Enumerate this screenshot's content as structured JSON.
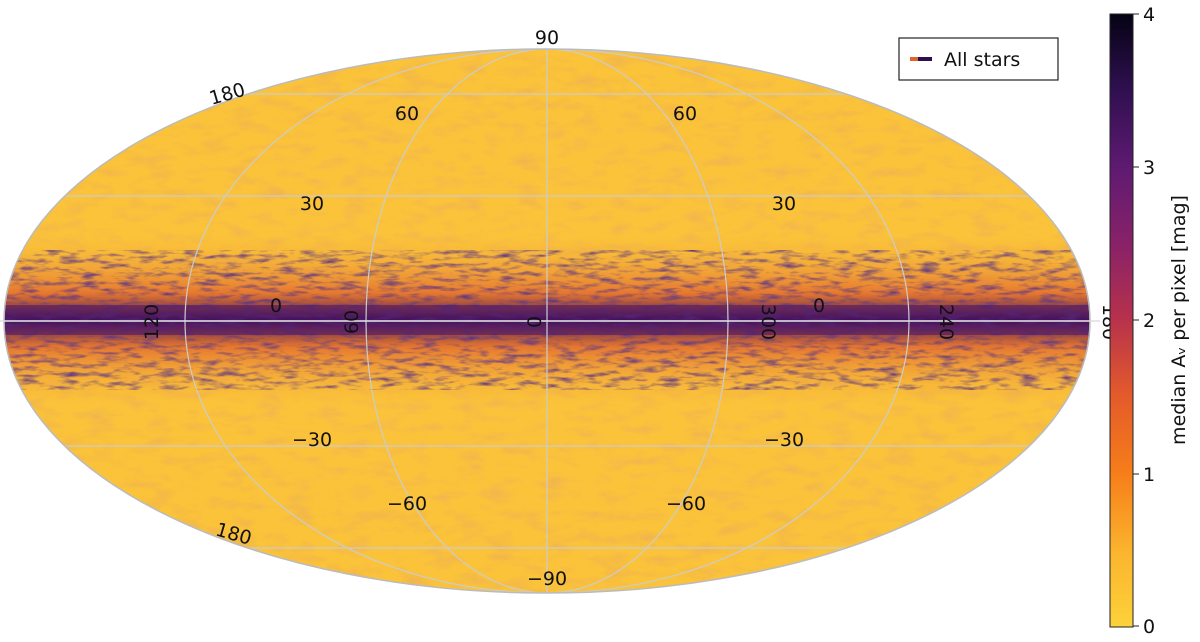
{
  "map": {
    "projection": "mollweide",
    "meridian_labels_top": [
      "180",
      "60",
      "60"
    ],
    "parallel_labels": [
      "30",
      "30",
      "0",
      "0",
      "−30",
      "−30",
      "−60",
      "−60"
    ],
    "equator_labels": [
      "120",
      "60",
      "0",
      "300",
      "240",
      "180"
    ],
    "pole_north": "90",
    "pole_south": "−90",
    "edge_bottom_left": "180"
  },
  "legend": {
    "label": "All stars"
  },
  "colorbar": {
    "label": "median Aᵥ per pixel  [mag]",
    "ticks": [
      "0",
      "1",
      "2",
      "3",
      "4"
    ],
    "min": 0,
    "max": 4,
    "colormap": "inferno_r"
  },
  "colors": {
    "background_low": "#fbc33a",
    "band_mid": "#e0652d",
    "band_high": "#5a1a6e",
    "band_max": "#0f0a26",
    "grid": "#cccccc"
  }
}
